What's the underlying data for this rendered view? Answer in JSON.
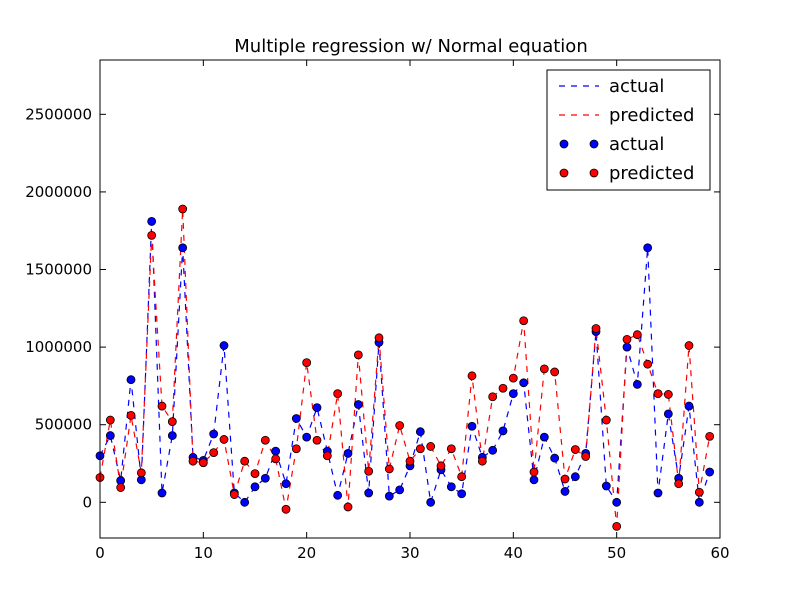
{
  "chart_data": {
    "type": "line",
    "title": "Multiple regression w/ Normal equation",
    "xlabel": "",
    "ylabel": "",
    "xlim": [
      0,
      60
    ],
    "ylim": [
      -230000,
      2850000
    ],
    "xticks": [
      0,
      10,
      20,
      30,
      40,
      50,
      60
    ],
    "yticks": [
      0,
      500000,
      1000000,
      1500000,
      2000000,
      2500000
    ],
    "xtick_labels": [
      "0",
      "10",
      "20",
      "30",
      "40",
      "50",
      "60"
    ],
    "ytick_labels": [
      "0",
      "500000",
      "1000000",
      "1500000",
      "2000000",
      "2500000"
    ],
    "grid": false,
    "legend_position": "top-right",
    "legend": [
      {
        "label": "actual",
        "style": "dashed-line",
        "color": "#0000ff"
      },
      {
        "label": "predicted",
        "style": "dashed-line",
        "color": "#ff0000"
      },
      {
        "label": "actual",
        "style": "marker",
        "color": "#0000ff"
      },
      {
        "label": "predicted",
        "style": "marker",
        "color": "#ff0000"
      }
    ],
    "x": [
      0,
      1,
      2,
      3,
      4,
      5,
      6,
      7,
      8,
      9,
      10,
      11,
      12,
      13,
      14,
      15,
      16,
      17,
      18,
      19,
      20,
      21,
      22,
      23,
      24,
      25,
      26,
      27,
      28,
      29,
      30,
      31,
      32,
      33,
      34,
      35,
      36,
      37,
      38,
      39,
      40,
      41,
      42,
      43,
      44,
      45,
      46,
      47,
      48,
      49,
      50,
      51,
      52,
      53,
      54,
      55,
      56,
      57,
      58,
      59
    ],
    "series": [
      {
        "name": "actual",
        "color": "#0000ff",
        "values": [
          300000,
          430000,
          140000,
          790000,
          145000,
          1810000,
          60000,
          430000,
          1640000,
          290000,
          270000,
          440000,
          1010000,
          60000,
          0,
          100000,
          155000,
          330000,
          120000,
          540000,
          420000,
          610000,
          330000,
          45000,
          315000,
          630000,
          60000,
          1030000,
          40000,
          80000,
          235000,
          455000,
          0,
          210000,
          100000,
          55000,
          490000,
          290000,
          335000,
          460000,
          700000,
          770000,
          145000,
          420000,
          285000,
          70000,
          165000,
          315000,
          1100000,
          105000,
          0,
          1000000,
          760000,
          1640000,
          60000,
          570000,
          155000,
          620000,
          0,
          195000
        ]
      },
      {
        "name": "predicted",
        "color": "#ff0000",
        "values": [
          160000,
          530000,
          95000,
          560000,
          190000,
          1720000,
          620000,
          520000,
          1890000,
          265000,
          255000,
          320000,
          405000,
          50000,
          265000,
          185000,
          400000,
          280000,
          -45000,
          345000,
          900000,
          400000,
          300000,
          700000,
          -30000,
          950000,
          200000,
          1060000,
          215000,
          495000,
          265000,
          345000,
          360000,
          235000,
          345000,
          165000,
          815000,
          265000,
          680000,
          735000,
          800000,
          1170000,
          195000,
          860000,
          840000,
          150000,
          340000,
          295000,
          1120000,
          530000,
          -155000,
          1050000,
          1080000,
          890000,
          700000,
          695000,
          120000,
          1010000,
          65000,
          425000
        ]
      }
    ]
  }
}
